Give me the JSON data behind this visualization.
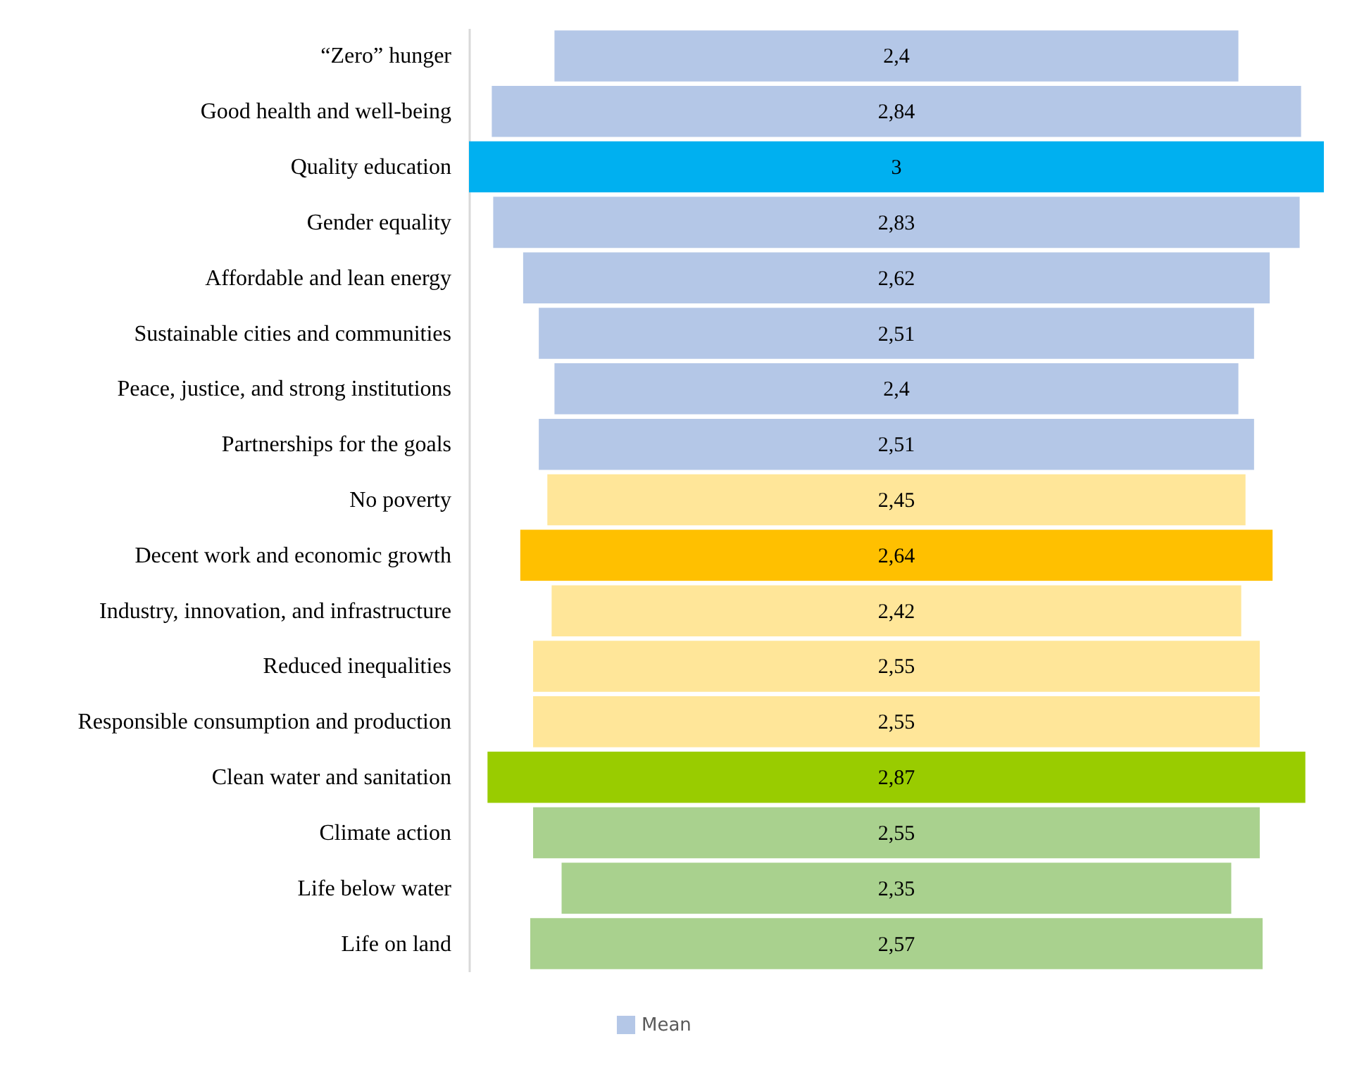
{
  "chart_data": {
    "type": "other",
    "categories": [
      "“Zero” hunger",
      "Good health and well-being",
      "Quality education",
      "Gender equality",
      "Affordable and lean energy",
      "Sustainable cities and communities",
      "Peace, justice, and strong institutions",
      "Partnerships for the goals",
      "No poverty",
      "Decent work and economic growth",
      "Industry, innovation, and infrastructure",
      "Reduced inequalities",
      "Responsible consumption and production",
      "Clean water and sanitation",
      "Climate action",
      "Life below water",
      "Life on land"
    ],
    "series": [
      {
        "name": "Mean",
        "color": "#b4c7e7",
        "values": [
          2.4,
          2.84,
          3,
          2.83,
          2.62,
          2.51,
          2.4,
          2.51,
          2.45,
          2.64,
          2.42,
          2.55,
          2.55,
          2.87,
          2.55,
          2.35,
          2.57
        ],
        "colors": [
          "#b4c7e7",
          "#b4c7e7",
          "#00b0f0",
          "#b4c7e7",
          "#b4c7e7",
          "#b4c7e7",
          "#b4c7e7",
          "#b4c7e7",
          "#ffe699",
          "#ffc000",
          "#ffe699",
          "#ffe699",
          "#ffe699",
          "#99cc00",
          "#a9d18e",
          "#a9d18e",
          "#a9d18e"
        ],
        "value_labels": [
          "2,4",
          "2,84",
          "3",
          "2,83",
          "2,62",
          "2,51",
          "2,4",
          "2,51",
          "2,45",
          "2,64",
          "2,42",
          "2,55",
          "2,55",
          "2,87",
          "2,55",
          "2,35",
          "2,57"
        ]
      }
    ],
    "legend": "bottom"
  }
}
